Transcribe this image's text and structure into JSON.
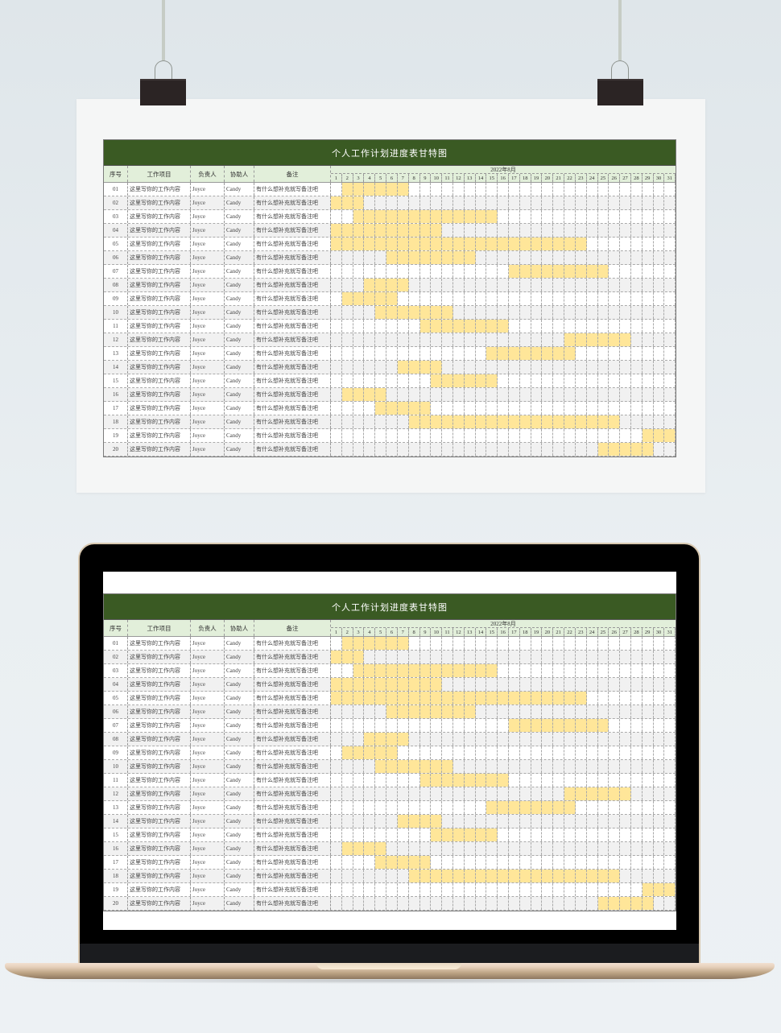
{
  "sheet": {
    "title": "个人工作计划进度表甘特图",
    "headers": {
      "seq": "序号",
      "task": "工作项目",
      "owner": "负责人",
      "helper": "协助人",
      "note": "备注"
    },
    "month_label": "2022年8月",
    "days": [
      1,
      2,
      3,
      4,
      5,
      6,
      7,
      8,
      9,
      10,
      11,
      12,
      13,
      14,
      15,
      16,
      17,
      18,
      19,
      20,
      21,
      22,
      23,
      24,
      25,
      26,
      27,
      28,
      29,
      30,
      31
    ],
    "bar_color": "#ffe699",
    "title_color": "#3a5a23",
    "header_color": "#e2efda",
    "rows": [
      {
        "seq": "01",
        "task": "这里写你的工作内容",
        "owner": "Joyce",
        "helper": "Candy",
        "note": "有什么想补充就写备注吧",
        "start": 2,
        "end": 7
      },
      {
        "seq": "02",
        "task": "这里写你的工作内容",
        "owner": "Joyce",
        "helper": "Candy",
        "note": "有什么想补充就写备注吧",
        "start": 1,
        "end": 3
      },
      {
        "seq": "03",
        "task": "这里写你的工作内容",
        "owner": "Joyce",
        "helper": "Candy",
        "note": "有什么想补充就写备注吧",
        "start": 3,
        "end": 15
      },
      {
        "seq": "04",
        "task": "这里写你的工作内容",
        "owner": "Joyce",
        "helper": "Candy",
        "note": "有什么想补充就写备注吧",
        "start": 1,
        "end": 10
      },
      {
        "seq": "05",
        "task": "这里写你的工作内容",
        "owner": "Joyce",
        "helper": "Candy",
        "note": "有什么想补充就写备注吧",
        "start": 1,
        "end": 23
      },
      {
        "seq": "06",
        "task": "这里写你的工作内容",
        "owner": "Joyce",
        "helper": "Candy",
        "note": "有什么想补充就写备注吧",
        "start": 6,
        "end": 13
      },
      {
        "seq": "07",
        "task": "这里写你的工作内容",
        "owner": "Joyce",
        "helper": "Candy",
        "note": "有什么想补充就写备注吧",
        "start": 17,
        "end": 25
      },
      {
        "seq": "08",
        "task": "这里写你的工作内容",
        "owner": "Joyce",
        "helper": "Candy",
        "note": "有什么想补充就写备注吧",
        "start": 4,
        "end": 7
      },
      {
        "seq": "09",
        "task": "这里写你的工作内容",
        "owner": "Joyce",
        "helper": "Candy",
        "note": "有什么想补充就写备注吧",
        "start": 2,
        "end": 6
      },
      {
        "seq": "10",
        "task": "这里写你的工作内容",
        "owner": "Joyce",
        "helper": "Candy",
        "note": "有什么想补充就写备注吧",
        "start": 5,
        "end": 11
      },
      {
        "seq": "11",
        "task": "这里写你的工作内容",
        "owner": "Joyce",
        "helper": "Candy",
        "note": "有什么想补充就写备注吧",
        "start": 9,
        "end": 16
      },
      {
        "seq": "12",
        "task": "这里写你的工作内容",
        "owner": "Joyce",
        "helper": "Candy",
        "note": "有什么想补充就写备注吧",
        "start": 22,
        "end": 27
      },
      {
        "seq": "13",
        "task": "这里写你的工作内容",
        "owner": "Joyce",
        "helper": "Candy",
        "note": "有什么想补充就写备注吧",
        "start": 15,
        "end": 22
      },
      {
        "seq": "14",
        "task": "这里写你的工作内容",
        "owner": "Joyce",
        "helper": "Candy",
        "note": "有什么想补充就写备注吧",
        "start": 7,
        "end": 10
      },
      {
        "seq": "15",
        "task": "这里写你的工作内容",
        "owner": "Joyce",
        "helper": "Candy",
        "note": "有什么想补充就写备注吧",
        "start": 10,
        "end": 15
      },
      {
        "seq": "16",
        "task": "这里写你的工作内容",
        "owner": "Joyce",
        "helper": "Candy",
        "note": "有什么想补充就写备注吧",
        "start": 2,
        "end": 5
      },
      {
        "seq": "17",
        "task": "这里写你的工作内容",
        "owner": "Joyce",
        "helper": "Candy",
        "note": "有什么想补充就写备注吧",
        "start": 5,
        "end": 9
      },
      {
        "seq": "18",
        "task": "这里写你的工作内容",
        "owner": "Joyce",
        "helper": "Candy",
        "note": "有什么想补充就写备注吧",
        "start": 8,
        "end": 26
      },
      {
        "seq": "19",
        "task": "这里写你的工作内容",
        "owner": "Joyce",
        "helper": "Candy",
        "note": "有什么想补充就写备注吧",
        "start": 29,
        "end": 31
      },
      {
        "seq": "20",
        "task": "这里写你的工作内容",
        "owner": "Joyce",
        "helper": "Candy",
        "note": "有什么想补充就写备注吧",
        "start": 25,
        "end": 29
      }
    ]
  }
}
